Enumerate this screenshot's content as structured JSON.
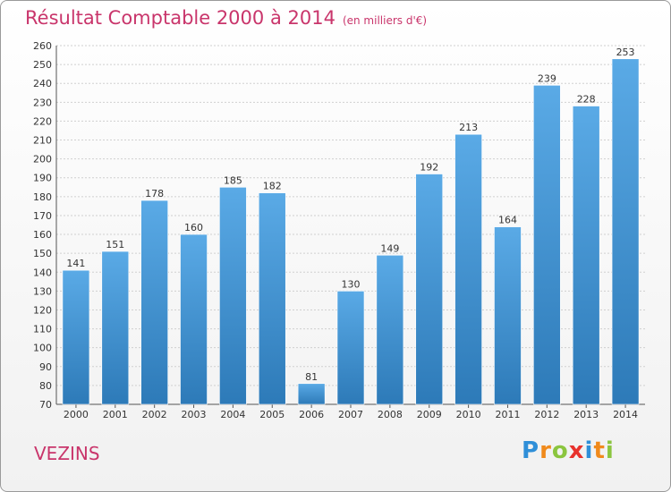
{
  "header": {
    "title": "Résultat Comptable 2000 à 2014",
    "unit": "(en milliers d'€)"
  },
  "footer": {
    "commune": "VEZINS",
    "logo_text": "Proxiti"
  },
  "colors": {
    "title": "#c9356b",
    "bar_top": "#5aaae6",
    "bar_bottom": "#2d7ab8"
  },
  "chart_data": {
    "type": "bar",
    "title": "Résultat Comptable 2000 à 2014",
    "subtitle": "(en milliers d'€)",
    "categories": [
      "2000",
      "2001",
      "2002",
      "2003",
      "2004",
      "2005",
      "2006",
      "2007",
      "2008",
      "2009",
      "2010",
      "2011",
      "2012",
      "2013",
      "2014"
    ],
    "values": [
      141,
      151,
      178,
      160,
      185,
      182,
      81,
      130,
      149,
      192,
      213,
      164,
      239,
      228,
      253
    ],
    "ylim": [
      70,
      260
    ],
    "ytick_step": 10,
    "grid": true
  }
}
